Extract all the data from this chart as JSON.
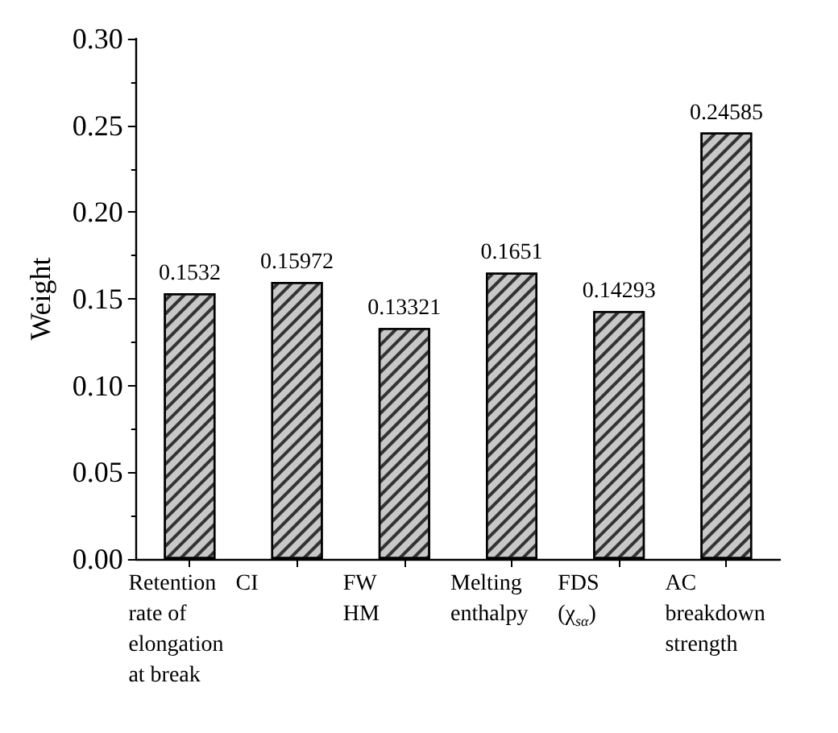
{
  "chart_data": {
    "type": "bar",
    "ylabel": "Weight",
    "categories": [
      "Retention\nrate of\nelongation\nat break",
      "CI",
      "FW\nHM",
      "Melting\nenthalpy",
      "FDS\n(χ$_{sα}$)",
      "AC\nbreakdown\nstrength"
    ],
    "values": [
      0.1532,
      0.15972,
      0.13321,
      0.1651,
      0.14293,
      0.24585
    ],
    "color": "#c8c8c8",
    "ylim": [
      0,
      0.3
    ],
    "yticks": [
      {
        "value": 0,
        "label": "0.00"
      },
      {
        "value": 0.05,
        "label": "0.05"
      },
      {
        "value": 0.1,
        "label": "0.10"
      },
      {
        "value": 0.15,
        "label": "0.15"
      },
      {
        "value": 0.2,
        "label": "0.20"
      },
      {
        "value": 0.25,
        "label": "0.25"
      },
      {
        "value": 0.3,
        "label": "0.30"
      }
    ],
    "data_labels": true,
    "grid": false
  }
}
